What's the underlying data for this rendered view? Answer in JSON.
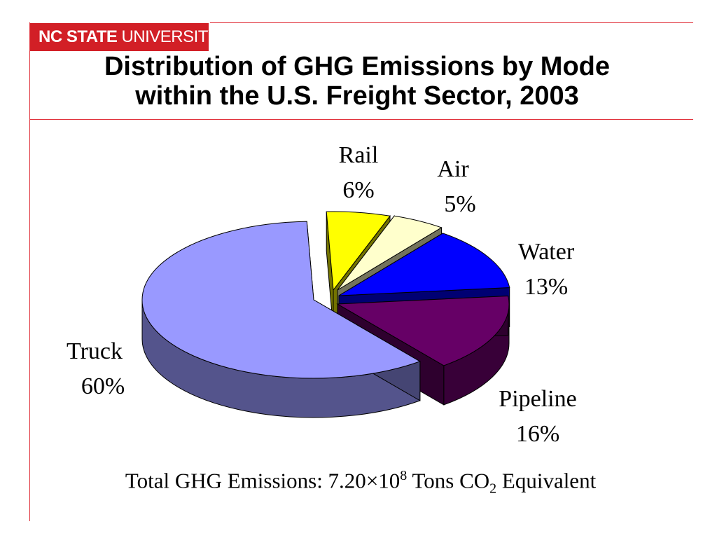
{
  "header": {
    "logo_bold": "NC STATE",
    "logo_rest": "UNIVERSITY",
    "title_line1": "Distribution of GHG Emissions by Mode",
    "title_line2": "within the U.S. Freight Sector, 2003"
  },
  "chart_data": {
    "type": "pie",
    "title": "Distribution of GHG Emissions by Mode within the U.S. Freight Sector, 2003",
    "categories": [
      "Truck",
      "Rail",
      "Air",
      "Water",
      "Pipeline"
    ],
    "values": [
      60,
      6,
      5,
      13,
      16
    ],
    "labels": [
      "60%",
      "6%",
      "5%",
      "13%",
      "16%"
    ],
    "colors": [
      "#9999ff",
      "#ffff00",
      "#ffffcc",
      "#0000ff",
      "#660066"
    ],
    "style": "3d-exploded"
  },
  "footer": {
    "prefix": "Total GHG Emissions: 7.20",
    "times": "×10",
    "exponent": "8",
    "units": " Tons CO",
    "subscript": "2",
    "suffix": " Equivalent"
  }
}
